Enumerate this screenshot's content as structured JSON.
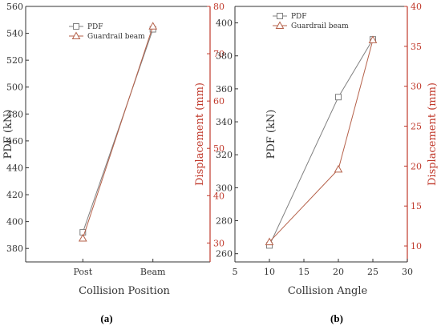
{
  "colors": {
    "pdf": "#808080",
    "guardrail": "#b5614a",
    "right_axis": "#c0392b",
    "axis": "#333333"
  },
  "chart_data": [
    {
      "type": "line",
      "panel_label": "(a)",
      "xlabel": "Collision Position",
      "ylabel": "PDF (kN)",
      "ylabel_right": "Displacement (mm)",
      "categories": [
        "Post",
        "Beam"
      ],
      "ylim": [
        370,
        560
      ],
      "yticks": [
        380,
        400,
        420,
        440,
        460,
        480,
        500,
        520,
        540,
        560
      ],
      "ylim_right": [
        26,
        80
      ],
      "yticks_right": [
        30,
        40,
        50,
        60,
        70,
        80
      ],
      "legend_position": "top-left",
      "series": [
        {
          "name": "PDF",
          "axis": "left",
          "marker": "square",
          "values": [
            392,
            543
          ]
        },
        {
          "name": "Guardrail beam",
          "axis": "right",
          "marker": "triangle",
          "values": [
            31,
            75.8
          ]
        }
      ]
    },
    {
      "type": "line",
      "panel_label": "(b)",
      "xlabel": "Collision Angle",
      "ylabel": "PDF (kN)",
      "ylabel_right": "Displacement (mm)",
      "xlim": [
        5,
        30
      ],
      "xticks": [
        5,
        10,
        15,
        20,
        25,
        30
      ],
      "ylim": [
        255,
        410
      ],
      "yticks": [
        260,
        280,
        300,
        320,
        340,
        360,
        380,
        400
      ],
      "ylim_right": [
        8,
        40
      ],
      "yticks_right": [
        10,
        15,
        20,
        25,
        30,
        35,
        40
      ],
      "legend_position": "top-left",
      "series": [
        {
          "name": "PDF",
          "axis": "left",
          "marker": "square",
          "x": [
            10,
            20,
            25
          ],
          "values": [
            265,
            355,
            390
          ]
        },
        {
          "name": "Guardrail beam",
          "axis": "right",
          "marker": "triangle",
          "x": [
            10,
            20,
            25
          ],
          "values": [
            10.5,
            19.6,
            35.8
          ]
        }
      ]
    }
  ]
}
